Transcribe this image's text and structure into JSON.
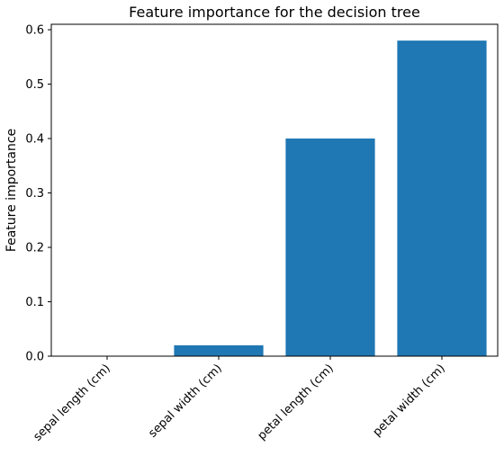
{
  "chart_data": {
    "type": "bar",
    "title": "Feature importance for the decision tree",
    "xlabel": "",
    "ylabel": "Feature importance",
    "categories": [
      "sepal length (cm)",
      "sepal width (cm)",
      "petal length (cm)",
      "petal width (cm)"
    ],
    "values": [
      0.0,
      0.02,
      0.4,
      0.58
    ],
    "ylim": [
      0.0,
      0.61
    ],
    "yticks": [
      "0.0",
      "0.1",
      "0.2",
      "0.3",
      "0.4",
      "0.5",
      "0.6"
    ],
    "grid": false,
    "bar_color": "#1f77b4"
  }
}
